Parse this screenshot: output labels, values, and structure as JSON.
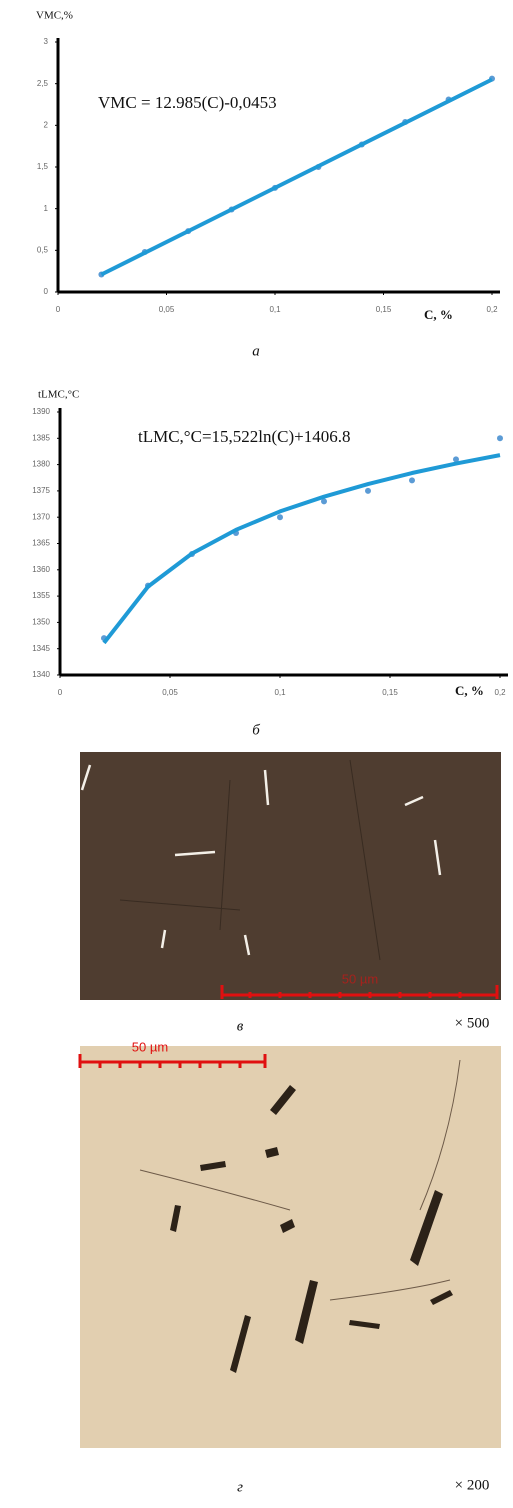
{
  "chart_data": [
    {
      "type": "scatter",
      "y_label": "VMC,%",
      "x_label": "C, %",
      "annotation": "VMC = 12.985(C)-0,0453",
      "caption": "a",
      "xlim": [
        0,
        0.2
      ],
      "ylim": [
        0,
        3
      ],
      "xticks": [
        0,
        {
          "value": 0.05,
          "label": "0,05"
        },
        {
          "value": 0.1,
          "label": "0,1"
        },
        {
          "value": 0.15,
          "label": "0,15"
        },
        {
          "value": 0.2,
          "label": "0,2"
        }
      ],
      "yticks": [
        0,
        {
          "value": 0.5,
          "label": "0,5"
        },
        1,
        {
          "value": 1.5,
          "label": "1,5"
        },
        2,
        {
          "value": 2.5,
          "label": "2,5"
        },
        3
      ],
      "series": [
        {
          "mode": "markers",
          "color": "#5b9bd5",
          "x": [
            0.02,
            0.04,
            0.06,
            0.08,
            0.1,
            0.12,
            0.14,
            0.16,
            0.18,
            0.2
          ],
          "values": [
            0.21,
            0.48,
            0.73,
            0.99,
            1.25,
            1.5,
            1.77,
            2.04,
            2.31,
            2.56
          ]
        },
        {
          "mode": "line",
          "color": "#1f9ad6",
          "x": [
            0.02,
            0.2
          ],
          "values": [
            0.21,
            2.55
          ]
        }
      ]
    },
    {
      "type": "scatter",
      "y_label": "tLMC,°C",
      "x_label": "C, %",
      "annotation": "tLMC,°C=15,522ln(C)+1406.8",
      "caption": "б",
      "xlim": [
        0,
        0.2
      ],
      "ylim": [
        1340,
        1390
      ],
      "xticks": [
        0,
        {
          "value": 0.05,
          "label": "0,05"
        },
        {
          "value": 0.1,
          "label": "0,1"
        },
        {
          "value": 0.15,
          "label": "0,15"
        },
        {
          "value": 0.2,
          "label": "0,2"
        }
      ],
      "yticks": [
        1340,
        1345,
        1350,
        1355,
        1360,
        1365,
        1370,
        1375,
        1380,
        1385,
        1390
      ],
      "series": [
        {
          "mode": "markers",
          "color": "#5b9bd5",
          "x": [
            0.02,
            0.04,
            0.06,
            0.08,
            0.1,
            0.12,
            0.14,
            0.16,
            0.18,
            0.2
          ],
          "values": [
            1347,
            1357,
            1363,
            1367,
            1370,
            1373,
            1375,
            1377,
            1381,
            1385
          ]
        },
        {
          "mode": "line",
          "color": "#1f9ad6",
          "x": [
            0.02,
            0.04,
            0.06,
            0.08,
            0.1,
            0.12,
            0.14,
            0.16,
            0.18,
            0.2
          ],
          "values": [
            1346.1,
            1356.8,
            1363.1,
            1367.6,
            1371.1,
            1373.9,
            1376.3,
            1378.4,
            1380.2,
            1381.8
          ]
        }
      ]
    }
  ],
  "panels": [
    {
      "caption": "в",
      "magnification": "× 500",
      "scale_bar": "50 µm"
    },
    {
      "caption": "г",
      "magnification": "× 200",
      "scale_bar": "50 µm"
    }
  ]
}
